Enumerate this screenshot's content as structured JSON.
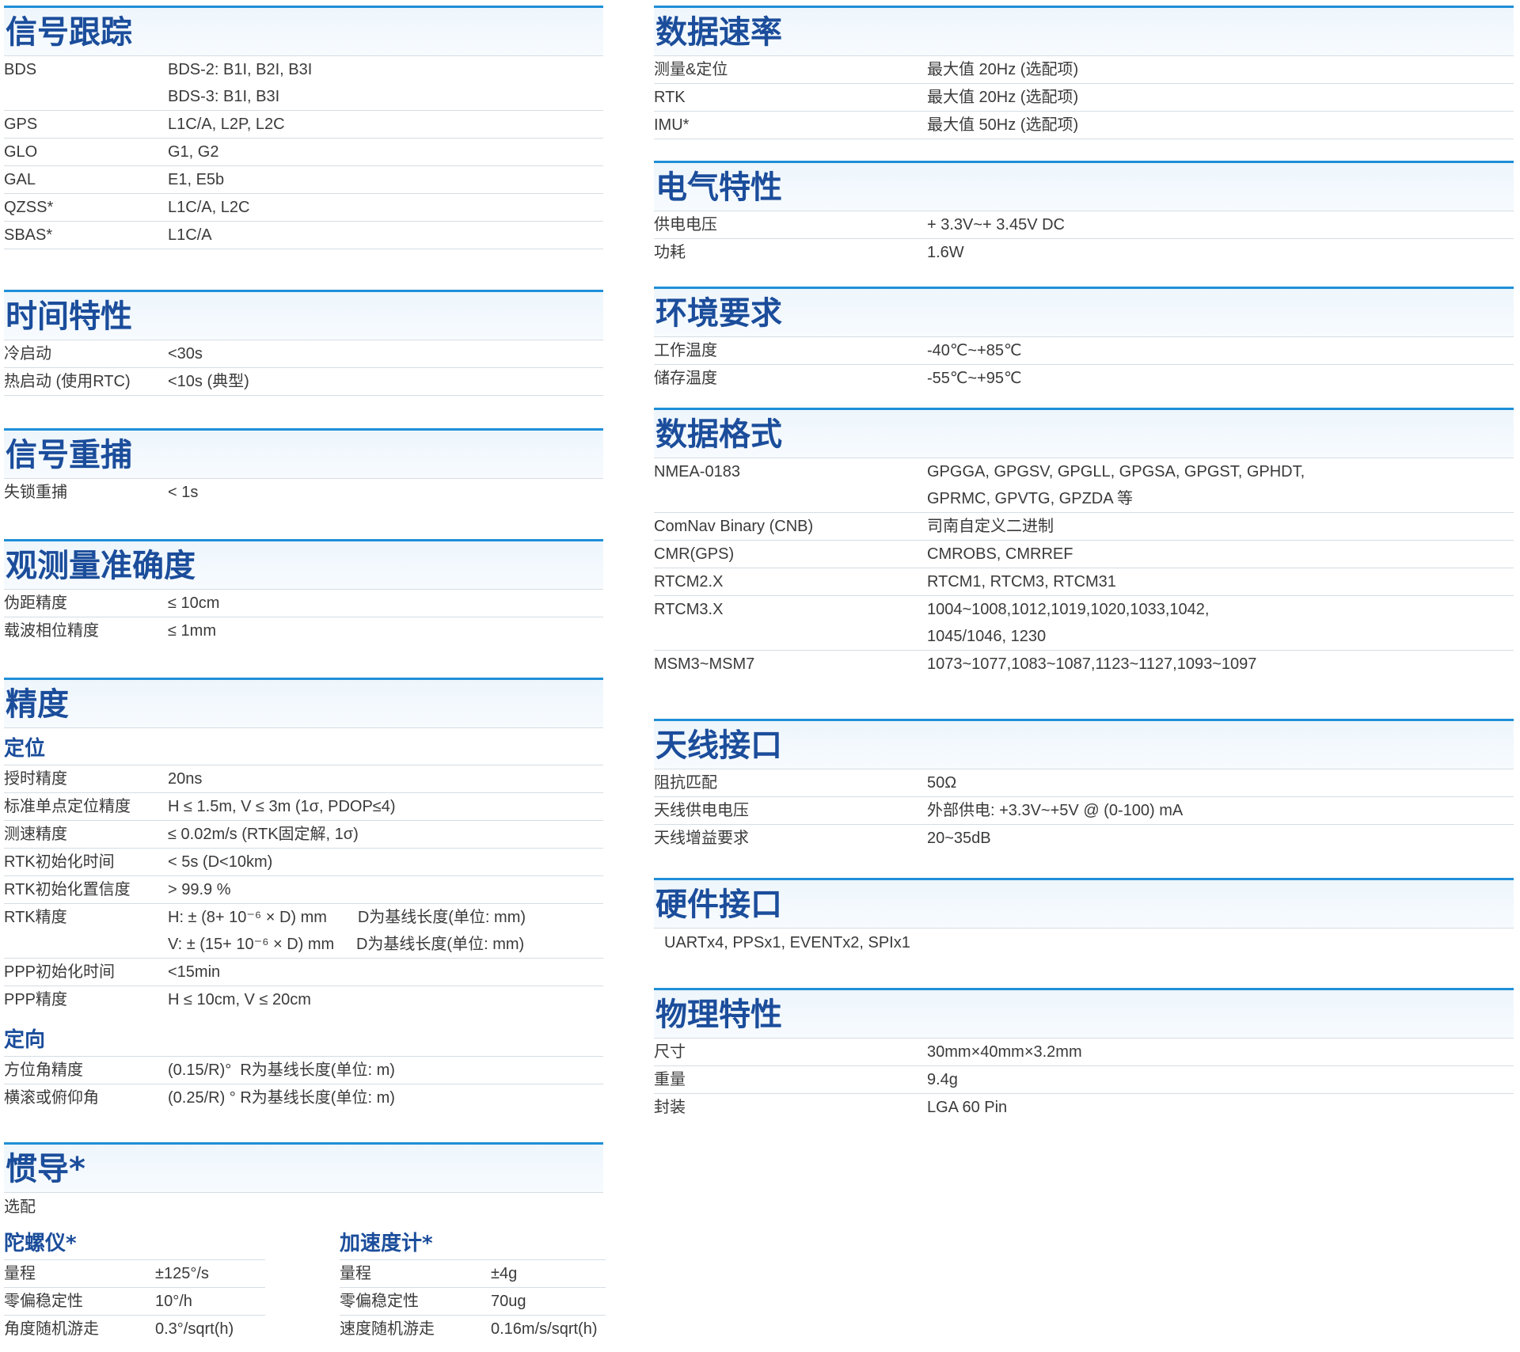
{
  "left": {
    "signal": {
      "title": "信号跟踪",
      "rows": [
        {
          "k": "BDS",
          "v": "BDS-2: B1I, B2I, B3I"
        },
        {
          "k": "",
          "v": "BDS-3: B1I, B3I"
        },
        {
          "k": "GPS",
          "v": "L1C/A, L2P, L2C"
        },
        {
          "k": "GLO",
          "v": "G1, G2"
        },
        {
          "k": "GAL",
          "v": "E1, E5b"
        },
        {
          "k": "QZSS*",
          "v": "L1C/A, L2C"
        },
        {
          "k": "SBAS*",
          "v": "L1C/A"
        }
      ]
    },
    "time": {
      "title": "时间特性",
      "rows": [
        {
          "k": "冷启动",
          "v": "<30s"
        },
        {
          "k": "热启动 (使用RTC)",
          "v": "<10s (典型)"
        }
      ]
    },
    "reacq": {
      "title": "信号重捕",
      "rows": [
        {
          "k": "失锁重捕",
          "v": "< 1s"
        }
      ]
    },
    "obs": {
      "title": "观测量准确度",
      "rows": [
        {
          "k": "伪距精度",
          "v": "≤ 10cm"
        },
        {
          "k": "载波相位精度",
          "v": "≤ 1mm"
        }
      ]
    },
    "accuracy": {
      "title": "精度",
      "sub1": "定位",
      "rows1": [
        {
          "k": "授时精度",
          "v": "20ns"
        },
        {
          "k": "标准单点定位精度",
          "v": "H ≤ 1.5m, V ≤ 3m (1σ, PDOP≤4)"
        },
        {
          "k": "测速精度",
          "v": "≤ 0.02m/s (RTK固定解, 1σ)"
        },
        {
          "k": "RTK初始化时间",
          "v": "< 5s (D<10km)"
        },
        {
          "k": "RTK初始化置信度",
          "v": "> 99.9 %"
        },
        {
          "k": "RTK精度",
          "v": "H: ± (8+ 10⁻⁶ × D) mm       D为基线长度(单位: mm)"
        },
        {
          "k": "",
          "v": "V: ± (15+ 10⁻⁶ × D) mm     D为基线长度(单位: mm)"
        },
        {
          "k": "PPP初始化时间",
          "v": "<15min"
        },
        {
          "k": "PPP精度",
          "v": "H ≤ 10cm, V ≤ 20cm"
        }
      ],
      "sub2": "定向",
      "rows2": [
        {
          "k": "方位角精度",
          "v": "(0.15/R)°  R为基线长度(单位: m)"
        },
        {
          "k": "横滚或俯仰角",
          "v": "(0.25/R) ° R为基线长度(单位: m)"
        }
      ]
    },
    "imu": {
      "title": "惯导*",
      "note": "选配",
      "gyro": {
        "title": "陀螺仪*",
        "rows": [
          {
            "k": "量程",
            "v": "±125°/s"
          },
          {
            "k": "零偏稳定性",
            "v": "10°/h"
          },
          {
            "k": "角度随机游走",
            "v": "0.3°/sqrt(h)"
          }
        ]
      },
      "accel": {
        "title": "加速度计*",
        "rows": [
          {
            "k": "量程",
            "v": "±4g"
          },
          {
            "k": "零偏稳定性",
            "v": "70ug"
          },
          {
            "k": "速度随机游走",
            "v": "0.16m/s/sqrt(h)"
          }
        ]
      }
    }
  },
  "right": {
    "rate": {
      "title": "数据速率",
      "rows": [
        {
          "k": "测量&定位",
          "v": "最大值 20Hz (选配项)"
        },
        {
          "k": "RTK",
          "v": "最大值 20Hz (选配项)"
        },
        {
          "k": "IMU*",
          "v": "最大值 50Hz (选配项)"
        }
      ]
    },
    "elec": {
      "title": "电气特性",
      "rows": [
        {
          "k": "供电电压",
          "v": "+ 3.3V~+ 3.45V DC"
        },
        {
          "k": "功耗",
          "v": "1.6W"
        }
      ]
    },
    "env": {
      "title": "环境要求",
      "rows": [
        {
          "k": "工作温度",
          "v": "-40℃~+85℃"
        },
        {
          "k": "储存温度",
          "v": "-55℃~+95℃"
        }
      ]
    },
    "format": {
      "title": "数据格式",
      "rows": [
        {
          "k": "NMEA-0183",
          "v": "GPGGA, GPGSV, GPGLL, GPGSA, GPGST, GPHDT,"
        },
        {
          "k": "",
          "v": "GPRMC, GPVTG, GPZDA 等"
        },
        {
          "k": "ComNav Binary (CNB)",
          "v": "司南自定义二进制"
        },
        {
          "k": "CMR(GPS)",
          "v": "CMROBS, CMRREF"
        },
        {
          "k": "RTCM2.X",
          "v": "RTCM1, RTCM3, RTCM31"
        },
        {
          "k": "RTCM3.X",
          "v": "1004~1008,1012,1019,1020,1033,1042,"
        },
        {
          "k": "",
          "v": "1045/1046, 1230"
        },
        {
          "k": "MSM3~MSM7",
          "v": "1073~1077,1083~1087,1123~1127,1093~1097"
        }
      ]
    },
    "antenna": {
      "title": "天线接口",
      "rows": [
        {
          "k": "阻抗匹配",
          "v": "50Ω"
        },
        {
          "k": "天线供电电压",
          "v": "外部供电: +3.3V~+5V @ (0-100) mA"
        },
        {
          "k": "天线增益要求",
          "v": "20~35dB"
        }
      ]
    },
    "hw": {
      "title": "硬件接口",
      "text": "UARTx4, PPSx1, EVENTx2, SPIx1"
    },
    "phys": {
      "title": "物理特性",
      "rows": [
        {
          "k": "尺寸",
          "v": "30mm×40mm×3.2mm"
        },
        {
          "k": "重量",
          "v": "9.4g"
        },
        {
          "k": "封装",
          "v": "LGA 60 Pin"
        }
      ]
    }
  }
}
